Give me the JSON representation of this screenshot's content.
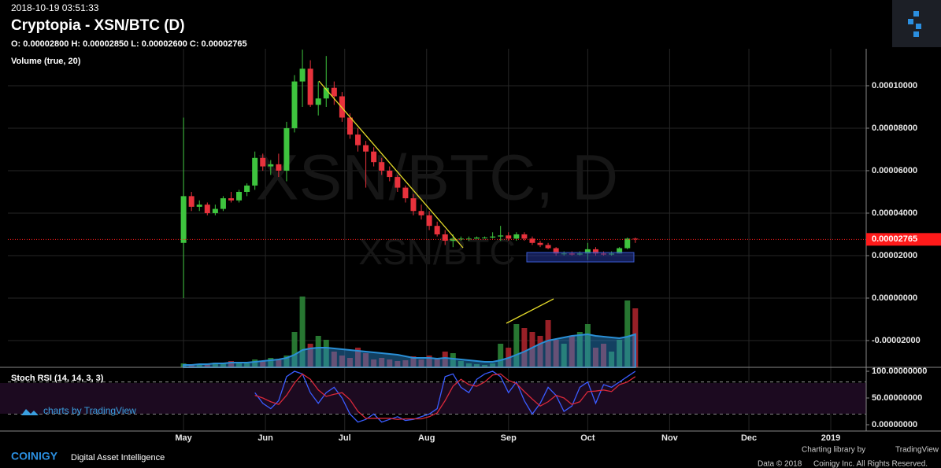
{
  "chart_data": [
    {
      "type": "candlestick",
      "timestamp": "2018-10-19 03:51:33",
      "title": "Cryptopia - XSN/BTC (D)",
      "ohlc_label": "O: 0.00002800 H: 0.00002850 L: 0.00002600 C: 0.00002765",
      "watermark": [
        "XSN/BTC, D",
        "XSN/BTC"
      ],
      "up_color": "#3ec43e",
      "down_color": "#e8323c",
      "x": [
        0,
        3,
        6,
        9,
        12,
        15,
        18,
        21,
        24,
        27,
        30,
        33,
        36,
        39,
        42,
        45,
        48,
        51,
        54,
        57,
        60,
        63,
        66,
        69,
        72,
        75,
        78,
        81,
        84,
        87,
        90,
        93,
        96,
        99,
        102,
        105,
        108,
        111,
        114,
        117,
        120,
        123,
        126,
        129,
        132,
        135,
        138,
        141,
        144,
        147,
        150,
        153,
        156,
        159,
        162,
        165,
        168,
        171
      ],
      "open": [
        2.6e-05,
        4.8e-05,
        4.3e-05,
        4.4e-05,
        4e-05,
        4.2e-05,
        4.7e-05,
        4.6e-05,
        5e-05,
        5.3e-05,
        6.6e-05,
        6.2e-05,
        6.3e-05,
        6e-05,
        8e-05,
        0.000102,
        0.000108,
        9.1e-05,
        9.4e-05,
        9.9e-05,
        9.5e-05,
        8.5e-05,
        7.7e-05,
        7.2e-05,
        6.9e-05,
        6.4e-05,
        6e-05,
        5.7e-05,
        5.2e-05,
        4.7e-05,
        4.1e-05,
        3.9e-05,
        3.4e-05,
        3e-05,
        2.7e-05,
        2.8e-05,
        2.8e-05,
        2.8e-05,
        2.85e-05,
        2.85e-05,
        2.9e-05,
        2.95e-05,
        2.8e-05,
        3e-05,
        2.8e-05,
        2.6e-05,
        2.5e-05,
        2.35e-05,
        2.1e-05,
        2.1e-05,
        2.05e-05,
        2.1e-05,
        2.3e-05,
        2.1e-05,
        2.05e-05,
        2.1e-05,
        2.35e-05,
        2.8e-05
      ],
      "high": [
        8.5e-05,
        5e-05,
        4.6e-05,
        4.5e-05,
        4.4e-05,
        4.8e-05,
        5e-05,
        5.1e-05,
        5.4e-05,
        6.9e-05,
        6.8e-05,
        6.5e-05,
        6.8e-05,
        8.3e-05,
        0.000105,
        0.000117,
        0.000112,
        0.000102,
        0.000114,
        0.000102,
        9.7e-05,
        8.7e-05,
        8e-05,
        7.4e-05,
        7.1e-05,
        6.6e-05,
        6.2e-05,
        5.8e-05,
        5.3e-05,
        4.9e-05,
        4.4e-05,
        4.1e-05,
        3.6e-05,
        3.2e-05,
        3e-05,
        2.9e-05,
        2.9e-05,
        2.9e-05,
        2.9e-05,
        3.1e-05,
        3.4e-05,
        3.1e-05,
        3.1e-05,
        3.1e-05,
        2.9e-05,
        2.7e-05,
        2.6e-05,
        2.4e-05,
        2.2e-05,
        2.2e-05,
        2.2e-05,
        2.6e-05,
        2.4e-05,
        2.2e-05,
        2.2e-05,
        2.4e-05,
        2.85e-05,
        2.85e-05
      ],
      "low": [
        0,
        4.1e-05,
        4.1e-05,
        3.9e-05,
        3.9e-05,
        4.1e-05,
        4.5e-05,
        4.5e-05,
        4.8e-05,
        5.1e-05,
        6e-05,
        5.8e-05,
        5.7e-05,
        5.5e-05,
        7.8e-05,
        9e-05,
        9e-05,
        8.6e-05,
        9e-05,
        9.1e-05,
        8.3e-05,
        7.5e-05,
        6.9e-05,
        5.2e-05,
        6.2e-05,
        5.8e-05,
        5.5e-05,
        5e-05,
        4.5e-05,
        3.9e-05,
        3.7e-05,
        3.2e-05,
        2.9e-05,
        2.5e-05,
        2.4e-05,
        2.7e-05,
        2.7e-05,
        2.8e-05,
        2.8e-05,
        2.8e-05,
        2.7e-05,
        2.7e-05,
        2.7e-05,
        2.7e-05,
        2.5e-05,
        2.4e-05,
        2.3e-05,
        2e-05,
        2e-05,
        2e-05,
        2e-05,
        1.8e-05,
        2e-05,
        2e-05,
        2e-05,
        2.1e-05,
        2.3e-05,
        2.6e-05
      ],
      "close": [
        4.8e-05,
        4.3e-05,
        4.4e-05,
        4e-05,
        4.2e-05,
        4.7e-05,
        4.6e-05,
        5e-05,
        5.3e-05,
        6.6e-05,
        6.2e-05,
        6.3e-05,
        6e-05,
        8e-05,
        0.000102,
        0.000108,
        9.1e-05,
        9.4e-05,
        9.9e-05,
        9.5e-05,
        8.5e-05,
        7.7e-05,
        7.2e-05,
        6.9e-05,
        6.4e-05,
        6e-05,
        5.7e-05,
        5.2e-05,
        4.7e-05,
        4.1e-05,
        3.9e-05,
        3.4e-05,
        3e-05,
        2.7e-05,
        2.8e-05,
        2.8e-05,
        2.8e-05,
        2.85e-05,
        2.85e-05,
        2.9e-05,
        2.95e-05,
        2.8e-05,
        3e-05,
        2.8e-05,
        2.6e-05,
        2.5e-05,
        2.35e-05,
        2.1e-05,
        2.1e-05,
        2.05e-05,
        2.1e-05,
        2.3e-05,
        2.1e-05,
        2.05e-05,
        2.1e-05,
        2.35e-05,
        2.8e-05,
        2.765e-05
      ],
      "last_price": {
        "value": 2.765e-05,
        "label": "0.00002765"
      },
      "last_color": "#ff1a1a",
      "xlim": [
        -66.5,
        258.4
      ],
      "xticks": [
        {
          "value": 0,
          "label": "May"
        },
        {
          "value": 31,
          "label": "Jun"
        },
        {
          "value": 61,
          "label": "Jul"
        },
        {
          "value": 92,
          "label": "Aug"
        },
        {
          "value": 123,
          "label": "Sep"
        },
        {
          "value": 153,
          "label": "Oct"
        },
        {
          "value": 184,
          "label": "Nov"
        },
        {
          "value": 214,
          "label": "Dec"
        },
        {
          "value": 245,
          "label": "2019"
        }
      ],
      "ylim": [
        -3.26e-05,
        0.0001174
      ],
      "yticks": [
        {
          "value": 0.0001,
          "label": "0.00010000"
        },
        {
          "value": 8e-05,
          "label": "0.00008000"
        },
        {
          "value": 6e-05,
          "label": "0.00006000"
        },
        {
          "value": 4e-05,
          "label": "0.00004000"
        },
        {
          "value": 2e-05,
          "label": "0.00002000"
        },
        {
          "value": 0,
          "label": "0.00000000"
        },
        {
          "value": -2e-05,
          "label": "-0.00002000"
        }
      ],
      "grid": true
    },
    {
      "type": "bar",
      "title": "Volume (true, 20)",
      "values": [
        5,
        3,
        3,
        4,
        6,
        5,
        8,
        6,
        5,
        10,
        8,
        12,
        10,
        15,
        45,
        90,
        30,
        40,
        35,
        20,
        15,
        12,
        25,
        18,
        10,
        12,
        10,
        8,
        9,
        14,
        10,
        15,
        12,
        20,
        18,
        8,
        5,
        4,
        3,
        5,
        30,
        25,
        55,
        50,
        45,
        40,
        60,
        35,
        30,
        40,
        45,
        55,
        25,
        30,
        20,
        35,
        85,
        75
      ],
      "ma": [
        3,
        3,
        4,
        4,
        5,
        5,
        6,
        6,
        6,
        7,
        8,
        9,
        10,
        12,
        16,
        22,
        24,
        25,
        25,
        24,
        23,
        22,
        21,
        20,
        19,
        18,
        17,
        16,
        14,
        12,
        12,
        12,
        11,
        12,
        11,
        10,
        9,
        8,
        7,
        7,
        9,
        12,
        16,
        20,
        25,
        30,
        34,
        36,
        38,
        40,
        41,
        42,
        40,
        39,
        38,
        37,
        39,
        42
      ],
      "up_color": "#2e8b3a",
      "down_color": "#b3262e",
      "ma_color": "#2a8fd6",
      "ylim": [
        0,
        100
      ]
    },
    {
      "type": "line",
      "title": "Stoch RSI (14, 14, 3, 3)",
      "series": [
        {
          "color": "#3a5cff",
          "values": [
            null,
            null,
            null,
            null,
            null,
            null,
            null,
            null,
            null,
            60,
            40,
            30,
            45,
            90,
            100,
            95,
            60,
            40,
            60,
            70,
            50,
            20,
            5,
            10,
            20,
            5,
            10,
            15,
            8,
            10,
            15,
            20,
            30,
            90,
            95,
            70,
            60,
            85,
            95,
            100,
            90,
            60,
            80,
            45,
            20,
            40,
            70,
            55,
            25,
            35,
            70,
            80,
            40,
            75,
            70,
            80,
            90,
            100
          ]
        },
        {
          "color": "#d8283a",
          "values": [
            null,
            null,
            null,
            null,
            null,
            null,
            null,
            null,
            null,
            55,
            50,
            43,
            38,
            55,
            78,
            95,
            85,
            65,
            53,
            57,
            60,
            47,
            25,
            12,
            12,
            12,
            12,
            10,
            11,
            11,
            11,
            15,
            22,
            45,
            72,
            85,
            75,
            72,
            80,
            93,
            95,
            83,
            77,
            62,
            48,
            35,
            43,
            55,
            50,
            38,
            43,
            62,
            63,
            65,
            62,
            75,
            80,
            90
          ]
        }
      ],
      "bands": [
        80,
        20
      ],
      "ylim": [
        -11.8,
        107.4
      ],
      "yticks": [
        {
          "value": 100,
          "label": "100.00000000"
        },
        {
          "value": 50,
          "label": "50.00000000"
        },
        {
          "value": 0,
          "label": "0.00000000"
        }
      ]
    }
  ],
  "badge": "charts by TradingView",
  "footer": {
    "brand": "COINIGY",
    "tagline": "Digital Asset Intelligence",
    "credit": "Charting library by",
    "credit_brand": "TradingView",
    "copyright": "Data © 2018",
    "rights": "Coinigy Inc. All Rights Reserved."
  }
}
